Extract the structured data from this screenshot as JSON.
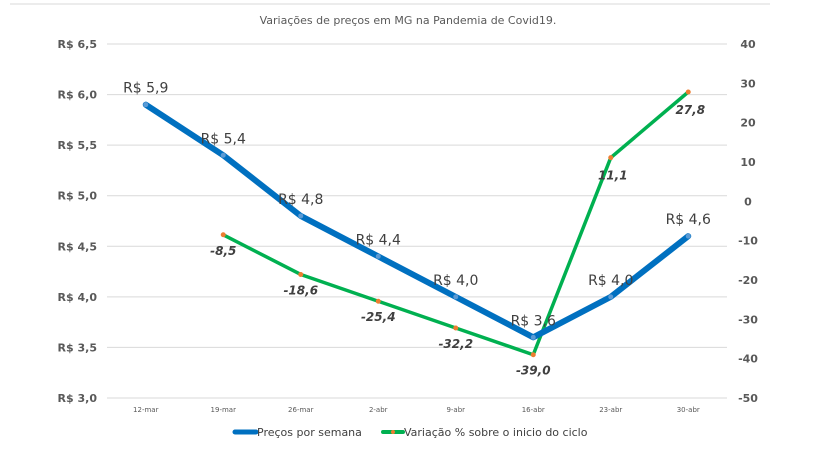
{
  "chart_data": {
    "type": "line",
    "title": "Variações de preços em MG na Pandemia de Covid19.",
    "categories": [
      "12-mar",
      "19-mar",
      "26-mar",
      "2-abr",
      "9-abr",
      "16-abr",
      "23-abr",
      "30-abr"
    ],
    "series": [
      {
        "name": "Preços por semana",
        "axis": "left",
        "color": "#0070C0",
        "values": [
          5.9,
          5.4,
          4.8,
          4.4,
          4.0,
          3.6,
          4.0,
          4.6
        ],
        "labels": [
          "R$ 5,9",
          "R$ 5,4",
          "R$ 4,8",
          "R$ 4,4",
          "R$ 4,0",
          "R$ 3,6",
          "R$ 4,0",
          "R$ 4,6"
        ]
      },
      {
        "name": "Variação % sobre o inicio do ciclo",
        "axis": "right",
        "color": "#00B050",
        "marker_color": "#ED7D31",
        "values": [
          null,
          -8.5,
          -18.6,
          -25.4,
          -32.2,
          -39.0,
          11.1,
          27.8
        ],
        "labels": [
          "",
          "-8,5",
          "-18,6",
          "-25,4",
          "-32,2",
          "-39,0",
          "11,1",
          "27,8"
        ]
      }
    ],
    "left_axis": {
      "range": [
        3.0,
        6.5
      ],
      "ticks": [
        "R$ 3,0",
        "R$ 3,5",
        "R$ 4,0",
        "R$ 4,5",
        "R$ 5,0",
        "R$ 5,5",
        "R$ 6,0",
        "R$ 6,5"
      ]
    },
    "right_axis": {
      "range": [
        -50,
        40
      ],
      "ticks": [
        "-50",
        "-40",
        "-30",
        "-20",
        "-10",
        "0",
        "10",
        "20",
        "30",
        "40"
      ]
    },
    "grid": true,
    "legend": "bottom"
  }
}
